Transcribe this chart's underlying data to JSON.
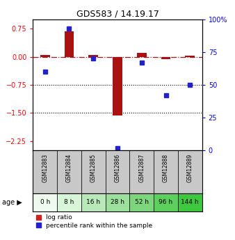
{
  "title": "GDS583 / 14.19.17",
  "samples": [
    "GSM12883",
    "GSM12884",
    "GSM12885",
    "GSM12886",
    "GSM12887",
    "GSM12888",
    "GSM12889"
  ],
  "ages": [
    "0 h",
    "8 h",
    "16 h",
    "28 h",
    "52 h",
    "96 h",
    "144 h"
  ],
  "log_ratio": [
    0.04,
    0.68,
    0.04,
    -1.57,
    0.1,
    -0.07,
    0.02
  ],
  "percentile_rank": [
    60,
    93,
    70,
    2,
    67,
    42,
    50
  ],
  "ylim_left": [
    -2.5,
    1.0
  ],
  "ylim_right": [
    0,
    100
  ],
  "yticks_left": [
    0.75,
    0.0,
    -0.75,
    -1.5,
    -2.25
  ],
  "yticks_right": [
    100,
    75,
    50,
    25,
    0
  ],
  "bar_color": "#aa1111",
  "dot_color": "#2222cc",
  "background_color": "#ffffff",
  "legend_log_ratio_color": "#cc2222",
  "legend_percentile_color": "#2222cc",
  "gsm_bg_color": "#c8c8c8",
  "age_colors": [
    "#edfaed",
    "#d8f5d8",
    "#bbe8bb",
    "#9ddf9d",
    "#7dd67d",
    "#5ccf5c",
    "#3dc83d"
  ]
}
